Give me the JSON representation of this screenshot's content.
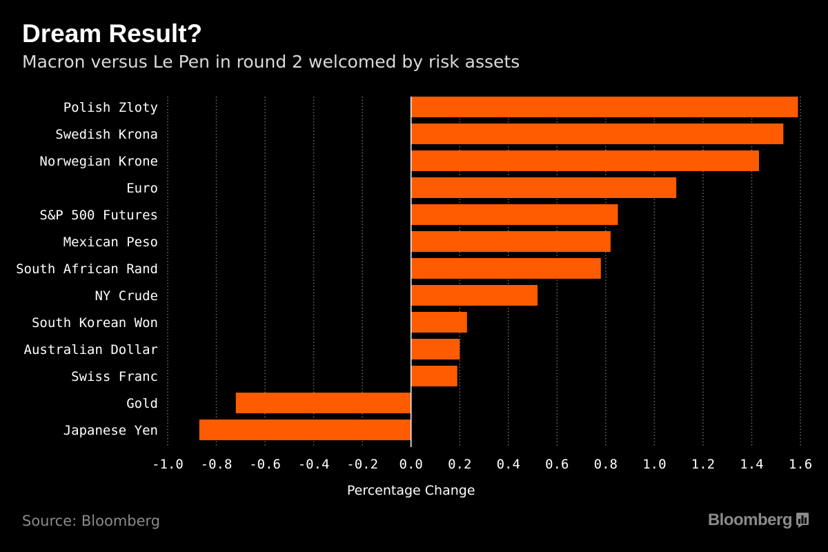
{
  "header": {
    "title": "Dream Result?",
    "subtitle": "Macron versus Le Pen in round 2 welcomed by risk assets"
  },
  "footer": {
    "source": "Source: Bloomberg",
    "brand": "Bloomberg",
    "brand_icon": "bloomberg-chart-icon"
  },
  "colors": {
    "background": "#000000",
    "bar": "#ff5b00",
    "text": "#ffffff",
    "grid": "#6e6e6e",
    "muted": "#8a8a8a"
  },
  "chart_data": {
    "type": "bar",
    "orientation": "horizontal",
    "categories": [
      "Polish Zloty",
      "Swedish Krona",
      "Norwegian Krone",
      "Euro",
      "S&P 500 Futures",
      "Mexican Peso",
      "South African Rand",
      "NY Crude",
      "South Korean Won",
      "Australian Dollar",
      "Swiss Franc",
      "Gold",
      "Japanese Yen"
    ],
    "values": [
      1.59,
      1.53,
      1.43,
      1.09,
      0.85,
      0.82,
      0.78,
      0.52,
      0.23,
      0.2,
      0.19,
      -0.72,
      -0.87
    ],
    "xlabel": "Percentage Change",
    "ylabel": "",
    "xlim": [
      -1.0,
      1.6
    ],
    "xticks": [
      "-1.0",
      "-0.8",
      "-0.6",
      "-0.4",
      "-0.2",
      "0.0",
      "0.2",
      "0.4",
      "0.6",
      "0.8",
      "1.0",
      "1.2",
      "1.4",
      "1.6"
    ],
    "grid": "vertical dotted",
    "legend": "none"
  }
}
